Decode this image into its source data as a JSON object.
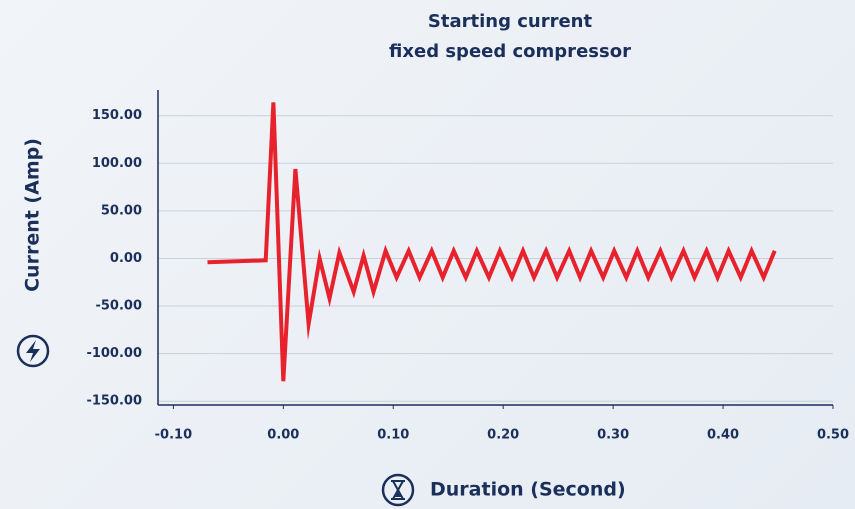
{
  "chart_data": {
    "type": "line",
    "title": [
      "Starting current",
      "fixed speed compressor"
    ],
    "x_label": "Duration (Second)",
    "y_label": "Current (Amp)",
    "color": "#e8222c",
    "grid": true,
    "x": [
      -0.069,
      -0.016,
      -0.009,
      0.0,
      0.011,
      0.023,
      0.033,
      0.042,
      0.051,
      0.064,
      0.073,
      0.082,
      0.093,
      0.103,
      0.114,
      0.124,
      0.135,
      0.145,
      0.155,
      0.166,
      0.176,
      0.187,
      0.197,
      0.208,
      0.218,
      0.228,
      0.239,
      0.249,
      0.26,
      0.27,
      0.28,
      0.291,
      0.301,
      0.312,
      0.322,
      0.332,
      0.343,
      0.353,
      0.364,
      0.374,
      0.385,
      0.395,
      0.405,
      0.416,
      0.426,
      0.437,
      0.447
    ],
    "values": [
      -4,
      -2,
      164,
      -129,
      94,
      -69,
      0,
      -42,
      6,
      -35,
      3,
      -35,
      8,
      -20,
      8,
      -20,
      8,
      -20,
      8,
      -20,
      8,
      -20,
      8,
      -20,
      8,
      -20,
      8,
      -20,
      8,
      -20,
      8,
      -20,
      8,
      -20,
      8,
      -20,
      8,
      -20,
      8,
      -20,
      8,
      -20,
      8,
      -20,
      8,
      -20,
      8
    ],
    "xlim": [
      -0.114,
      0.5
    ],
    "ylim": [
      -154,
      177
    ],
    "xticks": [
      {
        "value": -0.1,
        "label": "-0.10"
      },
      {
        "value": 0,
        "label": "0.00"
      },
      {
        "value": 0.1,
        "label": "0.10"
      },
      {
        "value": 0.2,
        "label": "0.20"
      },
      {
        "value": 0.3,
        "label": "0.30"
      },
      {
        "value": 0.4,
        "label": "0.40"
      },
      {
        "value": 0.5,
        "label": "0.50"
      }
    ],
    "yticks": [
      {
        "value": -150,
        "label": "-150.00"
      },
      {
        "value": -100,
        "label": "-100.00"
      },
      {
        "value": -50,
        "label": "-50.00"
      },
      {
        "value": 0,
        "label": "0.00"
      },
      {
        "value": 50,
        "label": "50.00"
      },
      {
        "value": 100,
        "label": "100.00"
      },
      {
        "value": 150,
        "label": "150.00"
      }
    ]
  }
}
